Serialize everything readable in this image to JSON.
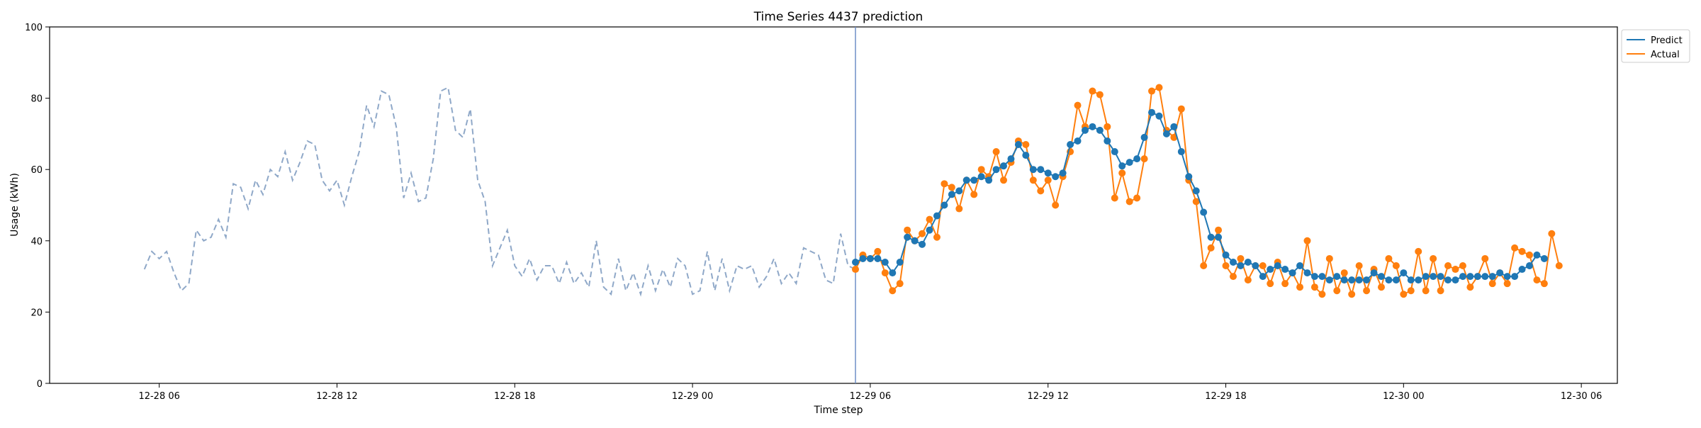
{
  "chart_data": {
    "type": "line",
    "title": "Time Series 4437 prediction",
    "xlabel": "Time step",
    "ylabel": "Usage (kWh)",
    "x_unit": "date-hour",
    "xlim": [
      "2027-12-28 02:18",
      "2027-12-30 07:13"
    ],
    "ylim": [
      0,
      100
    ],
    "y_ticks": [
      0,
      20,
      40,
      60,
      80,
      100
    ],
    "x_ticks": [
      {
        "label": "12-28 06",
        "x": "2027-12-28 06:00"
      },
      {
        "label": "12-28 12",
        "x": "2027-12-28 12:00"
      },
      {
        "label": "12-28 18",
        "x": "2027-12-28 18:00"
      },
      {
        "label": "12-29 00",
        "x": "2027-12-29 00:00"
      },
      {
        "label": "12-29 06",
        "x": "2027-12-29 06:00"
      },
      {
        "label": "12-29 12",
        "x": "2027-12-29 12:00"
      },
      {
        "label": "12-29 18",
        "x": "2027-12-29 18:00"
      },
      {
        "label": "12-30 00",
        "x": "2027-12-30 00:00"
      },
      {
        "label": "12-30 06",
        "x": "2027-12-30 06:00"
      }
    ],
    "grid": false,
    "legend_position": "top-right outside",
    "forecast_start": "2027-12-29 05:30",
    "history": {
      "start": "2027-12-28 05:30",
      "step_minutes": 15,
      "style": "dashed",
      "color": "#8FA8C8",
      "values": [
        32,
        37,
        35,
        37,
        31,
        26,
        28,
        43,
        40,
        41,
        46,
        41,
        56,
        55,
        49,
        57,
        53,
        60,
        58,
        65,
        57,
        62,
        68,
        67,
        57,
        54,
        57,
        50,
        58,
        65,
        78,
        72,
        82,
        81,
        72,
        52,
        59,
        51,
        52,
        63,
        82,
        83,
        71,
        69,
        77,
        57,
        51,
        33,
        38,
        43,
        33,
        30,
        35,
        29,
        33,
        33,
        28,
        34,
        28,
        31,
        27,
        40,
        27,
        25,
        35,
        26,
        31,
        25,
        33,
        26,
        32,
        27,
        35,
        33,
        25,
        26,
        37,
        26,
        35,
        26,
        33,
        32,
        33,
        27,
        30,
        35,
        28,
        31,
        28,
        38,
        37,
        36,
        29,
        28,
        42,
        33,
        32
      ]
    },
    "series": [
      {
        "name": "Predict",
        "color": "#1F77B4",
        "start": "2027-12-29 05:30",
        "step_minutes": 15,
        "values": [
          34,
          35,
          35,
          35,
          34,
          31,
          34,
          41,
          40,
          39,
          43,
          47,
          50,
          53,
          54,
          57,
          57,
          58,
          57,
          60,
          61,
          63,
          67,
          64,
          60,
          60,
          59,
          58,
          59,
          67,
          68,
          71,
          72,
          71,
          68,
          65,
          61,
          62,
          63,
          69,
          76,
          75,
          70,
          72,
          65,
          58,
          54,
          48,
          41,
          41,
          36,
          34,
          33,
          34,
          33,
          30,
          32,
          33,
          32,
          31,
          33,
          31,
          30,
          30,
          29,
          30,
          29,
          29,
          29,
          29,
          31,
          30,
          29,
          29,
          31,
          29,
          29,
          30,
          30,
          30,
          29,
          29,
          30,
          30,
          30,
          30,
          30,
          31,
          30,
          30,
          32,
          33,
          36,
          35
        ]
      },
      {
        "name": "Actual",
        "color": "#FF7F0E",
        "start": "2027-12-29 05:30",
        "step_minutes": 15,
        "values": [
          32,
          36,
          35,
          37,
          31,
          26,
          28,
          43,
          40,
          42,
          46,
          41,
          56,
          55,
          49,
          57,
          53,
          60,
          58,
          65,
          57,
          62,
          68,
          67,
          57,
          54,
          57,
          50,
          58,
          65,
          78,
          72,
          82,
          81,
          72,
          52,
          59,
          51,
          52,
          63,
          82,
          83,
          71,
          69,
          77,
          57,
          51,
          33,
          38,
          43,
          33,
          30,
          35,
          29,
          33,
          33,
          28,
          34,
          28,
          31,
          27,
          40,
          27,
          25,
          35,
          26,
          31,
          25,
          33,
          26,
          32,
          27,
          35,
          33,
          25,
          26,
          37,
          26,
          35,
          26,
          33,
          32,
          33,
          27,
          30,
          35,
          28,
          31,
          28,
          38,
          37,
          36,
          29,
          28,
          42,
          33
        ]
      }
    ]
  }
}
